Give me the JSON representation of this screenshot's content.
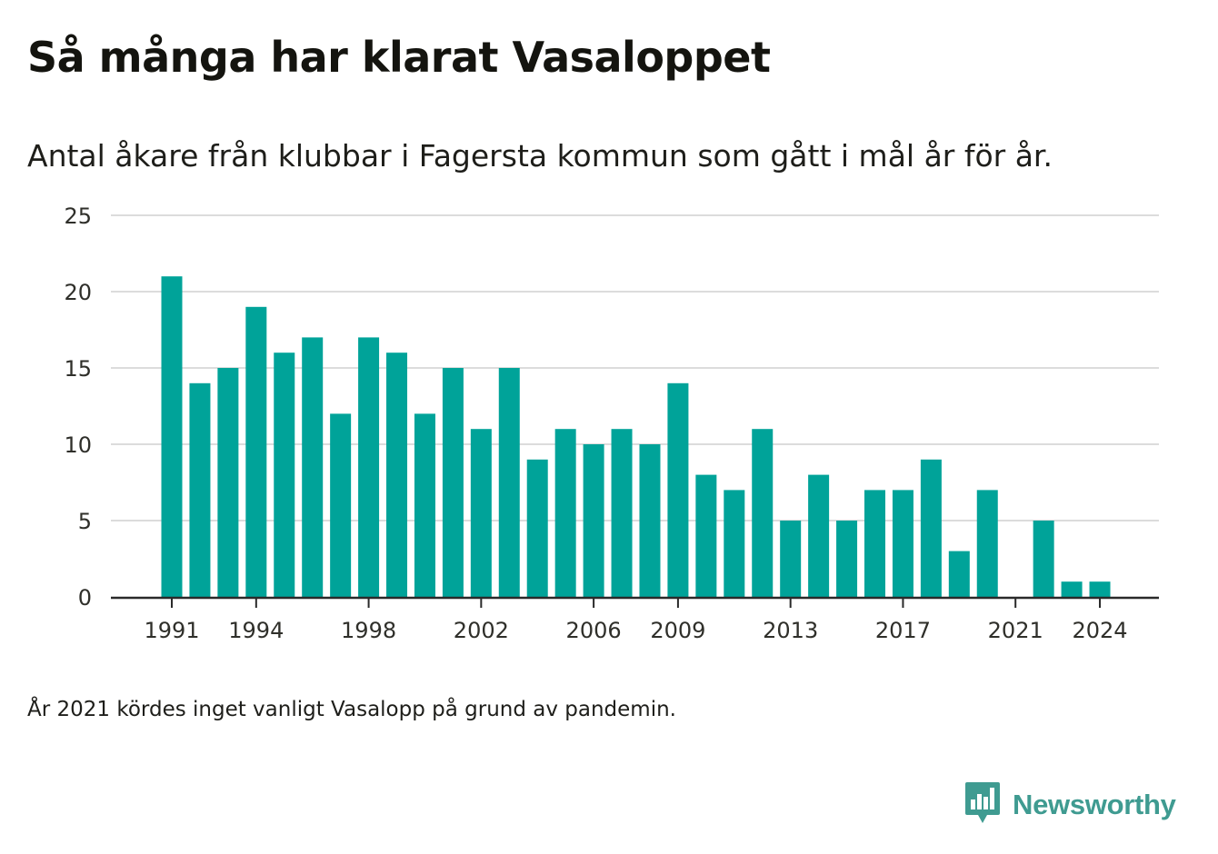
{
  "header": {
    "title": "Så många har klarat Vasaloppet",
    "subtitle": "Antal åkare från klubbar i Fagersta kommun som gått i mål år för år."
  },
  "footer": {
    "note": "År 2021 kördes inget vanligt Vasalopp på grund av pandemin.",
    "brand_name": "Newsworthy",
    "brand_logo_icon": "newsworthy-chart-bubble-icon"
  },
  "colors": {
    "bar": "#00a399",
    "grid": "#dcdcdc",
    "axis": "#2a2a2a",
    "brand": "#3f9b91"
  },
  "chart_data": {
    "type": "bar",
    "title": "Så många har klarat Vasaloppet",
    "subtitle": "Antal åkare från klubbar i Fagersta kommun som gått i mål år för år.",
    "xlabel": "",
    "ylabel": "",
    "ylim": [
      0,
      25
    ],
    "yticks": [
      0,
      5,
      10,
      15,
      20,
      25
    ],
    "xtick_labels": [
      "1991",
      "1994",
      "1998",
      "2002",
      "2006",
      "2009",
      "2013",
      "2017",
      "2021",
      "2024"
    ],
    "grid": true,
    "legend": "none",
    "categories": [
      "1991",
      "1992",
      "1993",
      "1994",
      "1995",
      "1996",
      "1997",
      "1998",
      "1999",
      "2000",
      "2001",
      "2002",
      "2003",
      "2004",
      "2005",
      "2006",
      "2007",
      "2008",
      "2009",
      "2010",
      "2011",
      "2012",
      "2013",
      "2014",
      "2015",
      "2016",
      "2017",
      "2018",
      "2019",
      "2020",
      "2021",
      "2022",
      "2023",
      "2024"
    ],
    "values": [
      21,
      14,
      15,
      19,
      16,
      17,
      12,
      17,
      16,
      12,
      15,
      11,
      15,
      9,
      11,
      10,
      11,
      10,
      14,
      8,
      7,
      11,
      5,
      8,
      5,
      7,
      7,
      9,
      3,
      7,
      0,
      5,
      1,
      1
    ]
  }
}
